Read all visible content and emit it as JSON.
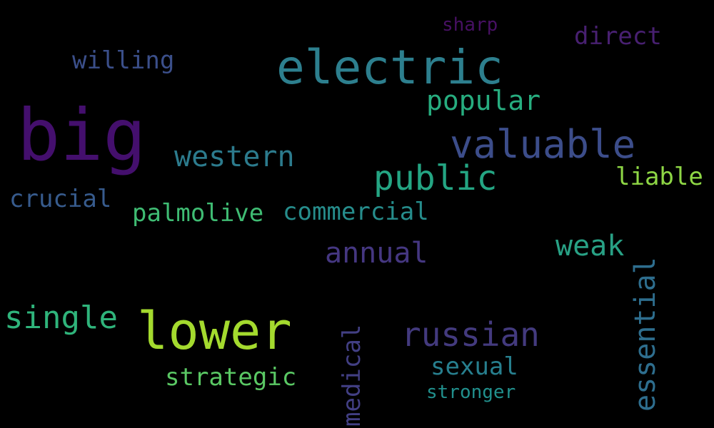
{
  "words": [
    {
      "id": "big",
      "text": "big",
      "color": "#440f6d"
    },
    {
      "id": "electric",
      "text": "electric",
      "color": "#2d7f8e"
    },
    {
      "id": "lower",
      "text": "lower",
      "color": "#a4da2e"
    },
    {
      "id": "valuable",
      "text": "valuable",
      "color": "#3c4d8a"
    },
    {
      "id": "public",
      "text": "public",
      "color": "#24a583"
    },
    {
      "id": "russian",
      "text": "russian",
      "color": "#433a7e"
    },
    {
      "id": "western",
      "text": "western",
      "color": "#2c7b8d"
    },
    {
      "id": "single",
      "text": "single",
      "color": "#2fb47b"
    },
    {
      "id": "popular",
      "text": "popular",
      "color": "#27ad7f"
    },
    {
      "id": "annual",
      "text": "annual",
      "color": "#453781"
    },
    {
      "id": "essential",
      "text": "essential",
      "color": "#2e6e8e"
    },
    {
      "id": "weak",
      "text": "weak",
      "color": "#28a185"
    },
    {
      "id": "willing",
      "text": "willing",
      "color": "#3b4f8a"
    },
    {
      "id": "direct",
      "text": "direct",
      "color": "#482071"
    },
    {
      "id": "commercial",
      "text": "commercial",
      "color": "#268d8c"
    },
    {
      "id": "palmolive",
      "text": "palmolive",
      "color": "#3fbc73"
    },
    {
      "id": "crucial",
      "text": "crucial",
      "color": "#375b8d"
    },
    {
      "id": "liable",
      "text": "liable",
      "color": "#8ed645"
    },
    {
      "id": "strategic",
      "text": "strategic",
      "color": "#5ac864"
    },
    {
      "id": "medical",
      "text": "medical",
      "color": "#423f84"
    },
    {
      "id": "sexual",
      "text": "sexual",
      "color": "#277f8e"
    },
    {
      "id": "stronger",
      "text": "stronger",
      "color": "#21908d"
    },
    {
      "id": "sharp",
      "text": "sharp",
      "color": "#471063"
    }
  ]
}
